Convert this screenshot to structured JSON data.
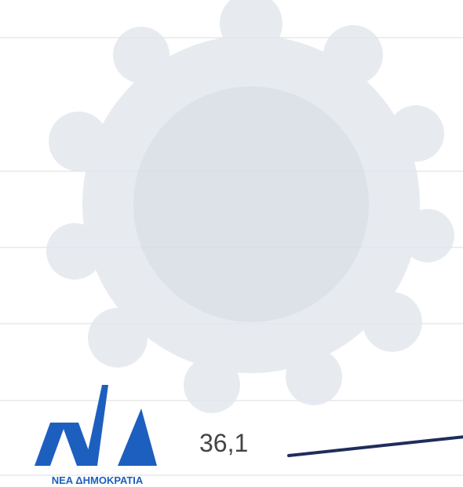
{
  "annotation": "36,1",
  "logo": {
    "text": "ΝΕΑ ΔΗΜΟΚΡΑΤΙΑ"
  }
}
